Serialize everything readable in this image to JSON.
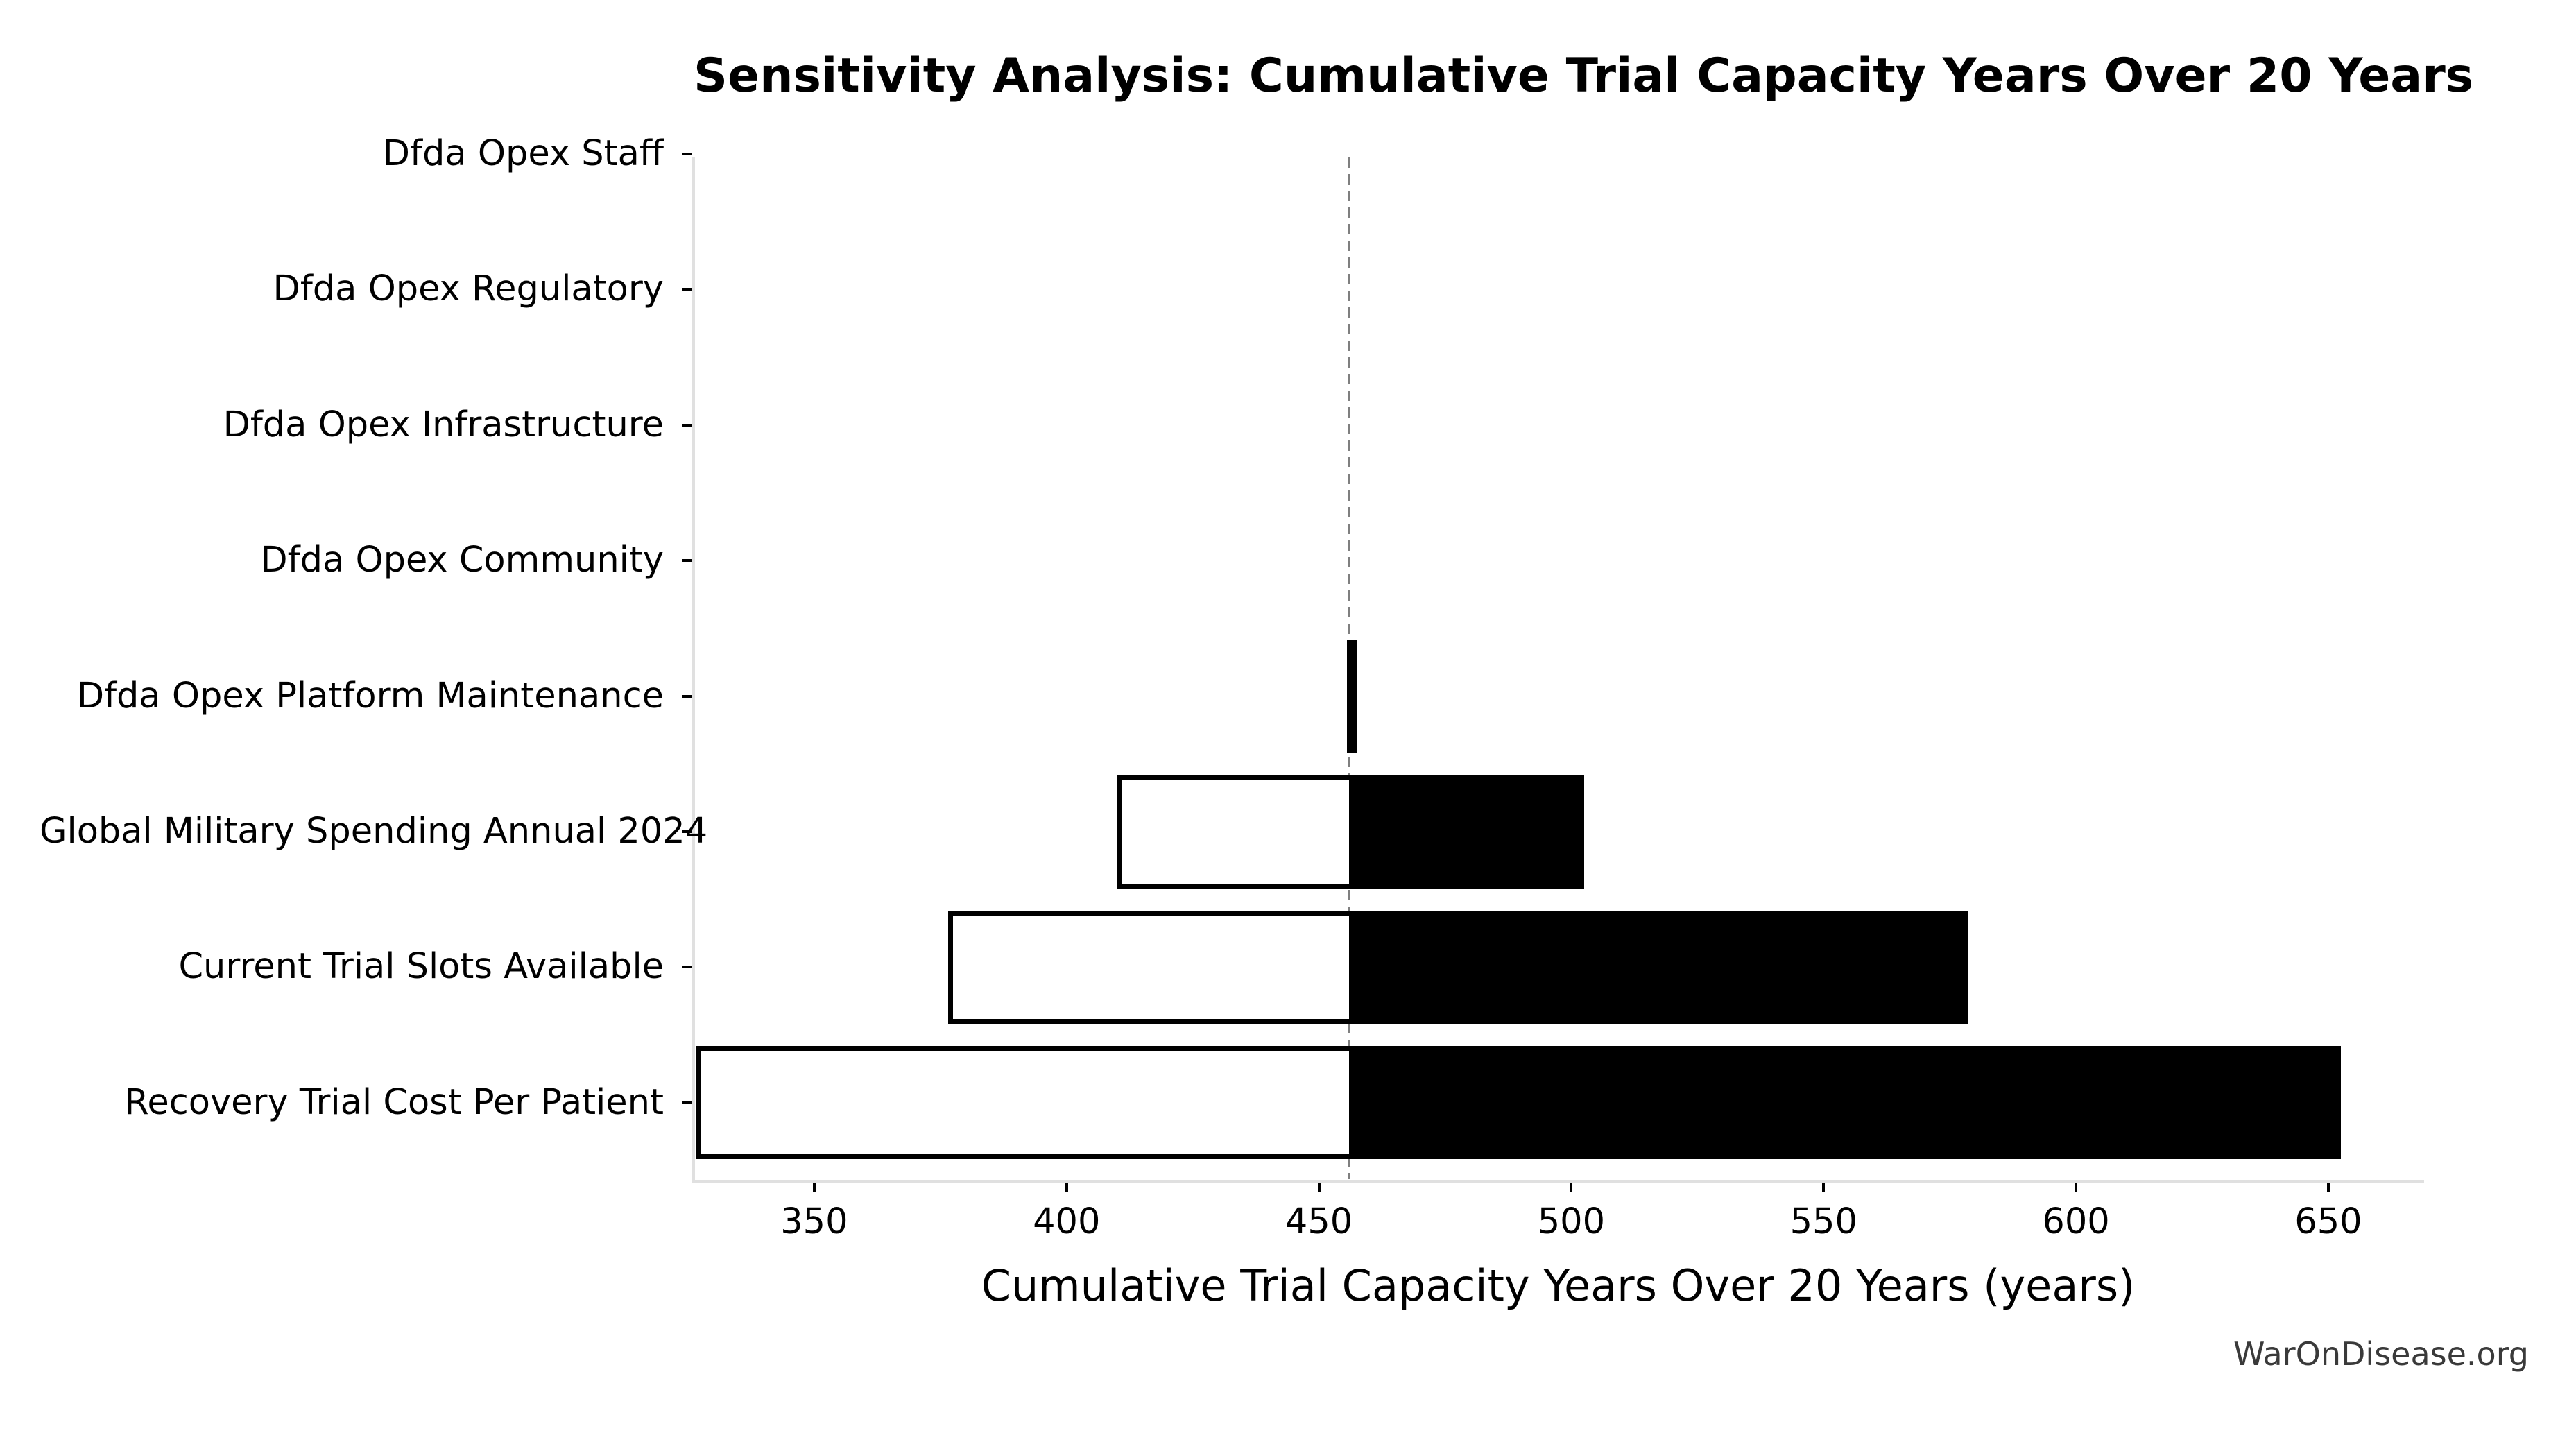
{
  "watermark": "WarOnDisease.org",
  "chart_data": {
    "type": "bar",
    "subtype": "tornado-sensitivity",
    "orientation": "horizontal",
    "title": "Sensitivity Analysis: Cumulative Trial Capacity Years Over 20 Years",
    "xlabel": "Cumulative Trial Capacity Years Over 20 Years (years)",
    "ylabel": "",
    "baseline": 456,
    "x_ticks": [
      350,
      400,
      450,
      500,
      550,
      600,
      650
    ],
    "xlim": [
      326.1,
      668.7
    ],
    "grid": false,
    "legend": false,
    "categories_top_to_bottom": [
      "Dfda Opex Staff",
      "Dfda Opex Regulatory",
      "Dfda Opex Infrastructure",
      "Dfda Opex Community",
      "Dfda Opex Platform Maintenance",
      "Global Military Spending Annual 2024",
      "Current Trial Slots Available",
      "Recovery Trial Cost Per Patient"
    ],
    "series": [
      {
        "name": "low_estimate",
        "values": [
          456,
          456,
          456,
          456,
          455.5,
          410,
          376.5,
          326.5
        ]
      },
      {
        "name": "high_estimate",
        "values": [
          456,
          456,
          456,
          456,
          457.5,
          502.5,
          578.5,
          652.5
        ]
      }
    ],
    "colors": {
      "high_fill": "#000000",
      "low_fill": "#ffffff",
      "bar_edge": "#000000",
      "baseline_line": "#7f7f7f",
      "spine": "#e0e0e0",
      "tick": "#000000",
      "watermark": "#3a3a3a"
    }
  }
}
